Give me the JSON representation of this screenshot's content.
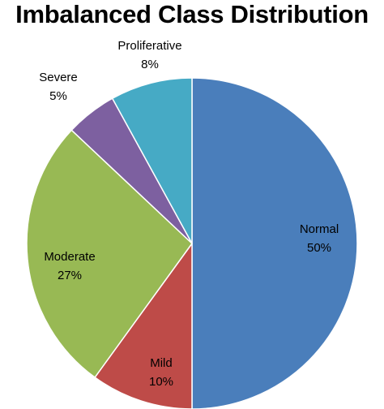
{
  "chart_data": {
    "type": "pie",
    "title": "Imbalanced Class Distribution",
    "slices": [
      {
        "label": "Normal",
        "value": 50,
        "value_label": "50%",
        "color": "#4A7EBB"
      },
      {
        "label": "Mild",
        "value": 10,
        "value_label": "10%",
        "color": "#BE4B48"
      },
      {
        "label": "Moderate",
        "value": 27,
        "value_label": "27%",
        "color": "#98B954"
      },
      {
        "label": "Severe",
        "value": 5,
        "value_label": "5%",
        "color": "#7D60A0"
      },
      {
        "label": "Proliferative",
        "value": 8,
        "value_label": "8%",
        "color": "#46AAC5"
      }
    ],
    "start": "12 o'clock",
    "direction": "clockwise"
  }
}
